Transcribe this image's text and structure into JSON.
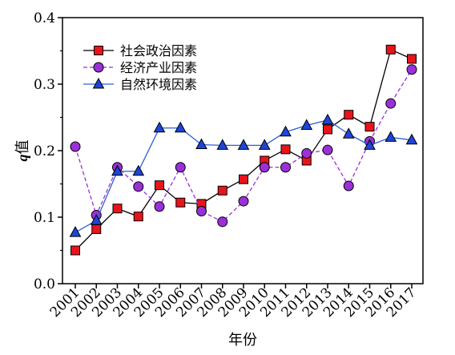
{
  "chart_data": {
    "type": "line",
    "xlabel": "年份",
    "ylabel_italic": "q",
    "ylabel_rest": "值",
    "ylim": [
      0.0,
      0.4
    ],
    "yticks": [
      "0.0",
      "0.1",
      "0.2",
      "0.3",
      "0.4"
    ],
    "categories": [
      "2001",
      "2002",
      "2003",
      "2004",
      "2005",
      "2006",
      "2007",
      "2008",
      "2009",
      "2010",
      "2011",
      "2012",
      "2013",
      "2014",
      "2015",
      "2016",
      "2017"
    ],
    "legend_position": "top-left",
    "series": [
      {
        "name": "社会政治因素",
        "line_style": "solid",
        "line_color": "#000000",
        "marker": "square",
        "marker_color": "#e8141c",
        "values": [
          0.05,
          0.082,
          0.113,
          0.101,
          0.148,
          0.122,
          0.12,
          0.14,
          0.157,
          0.185,
          0.202,
          0.185,
          0.232,
          0.254,
          0.236,
          0.352,
          0.338
        ]
      },
      {
        "name": "经济产业因素",
        "line_style": "dashed",
        "line_color": "#9b30d9",
        "marker": "circle",
        "marker_color": "#9b30d9",
        "values": [
          0.206,
          0.103,
          0.175,
          0.146,
          0.116,
          0.175,
          0.109,
          0.093,
          0.124,
          0.175,
          0.175,
          0.196,
          0.201,
          0.147,
          0.214,
          0.271,
          0.322
        ]
      },
      {
        "name": "自然环境因素",
        "line_style": "solid",
        "line_color": "#2a5fd6",
        "marker": "triangle",
        "marker_color": "#1f44d8",
        "values": [
          0.077,
          0.095,
          0.169,
          0.169,
          0.234,
          0.234,
          0.209,
          0.208,
          0.208,
          0.208,
          0.228,
          0.238,
          0.246,
          0.225,
          0.208,
          0.22,
          0.216
        ]
      }
    ]
  }
}
